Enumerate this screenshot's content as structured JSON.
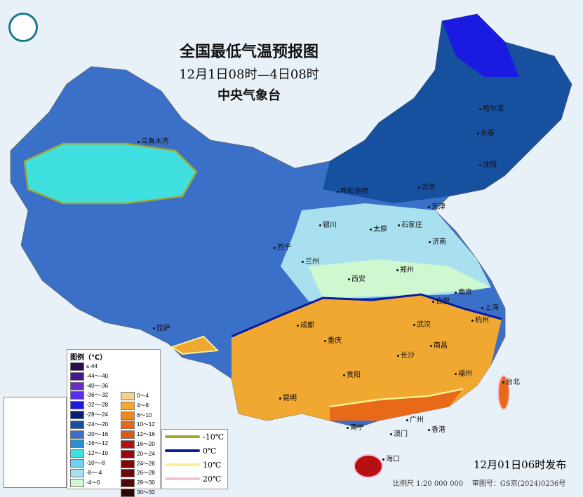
{
  "title": "全国最低气温预报图",
  "subtitle": "12月1日08时—4日08时",
  "issuer": "中央气象台",
  "issue_time": "12月01日06时发布",
  "scale": "比例尺 1:20 000 000",
  "map_number": "审图号：GS京(2024)0236号",
  "legend": {
    "heading": "图例（℃）",
    "cold": [
      {
        "label": "≤-44",
        "color": "#2a0a50"
      },
      {
        "label": "-44～-40",
        "color": "#4a1590"
      },
      {
        "label": "-40～-36",
        "color": "#6a2ec0"
      },
      {
        "label": "-36～-32",
        "color": "#5a2ef0"
      },
      {
        "label": "-32～-28",
        "color": "#1a1ae0"
      },
      {
        "label": "-28～-24",
        "color": "#0a2070"
      },
      {
        "label": "-24～-20",
        "color": "#1850a0"
      },
      {
        "label": "-20～-16",
        "color": "#3a70c8"
      },
      {
        "label": "-16～-12",
        "color": "#2a90d0"
      },
      {
        "label": "-12～-10",
        "color": "#40e0e0"
      },
      {
        "label": "-10～-8",
        "color": "#70d0f0"
      },
      {
        "label": "-8～-4",
        "color": "#a8e0f0"
      },
      {
        "label": "-4～0",
        "color": "#d0f8d0"
      }
    ],
    "warm": [
      {
        "label": "0～4",
        "color": "#f8d090"
      },
      {
        "label": "4～8",
        "color": "#f0a830"
      },
      {
        "label": "8～10",
        "color": "#f08820"
      },
      {
        "label": "10～12",
        "color": "#e86a18"
      },
      {
        "label": "12～16",
        "color": "#d85a18"
      },
      {
        "label": "16～20",
        "color": "#b81010"
      },
      {
        "label": "20～24",
        "color": "#980808"
      },
      {
        "label": "24～26",
        "color": "#800808"
      },
      {
        "label": "26～28",
        "color": "#680808"
      },
      {
        "label": "28～30",
        "color": "#500808"
      },
      {
        "label": "30～32",
        "color": "#300505"
      }
    ]
  },
  "contours": [
    {
      "label": "-10℃",
      "color": "#a0a830"
    },
    {
      "label": "0℃",
      "color": "#0a1aa0"
    },
    {
      "label": "10℃",
      "color": "#f8f090"
    },
    {
      "label": "20℃",
      "color": "#f8c0d8"
    }
  ],
  "cities": [
    "哈尔滨",
    "长春",
    "沈阳",
    "北京",
    "天津",
    "呼和浩特",
    "石家庄",
    "太原",
    "济南",
    "银川",
    "西宁",
    "兰州",
    "郑州",
    "西安",
    "合肥",
    "南京",
    "上海",
    "杭州",
    "武汉",
    "成都",
    "重庆",
    "南昌",
    "长沙",
    "福州",
    "台北",
    "贵阳",
    "昆明",
    "南宁",
    "广州",
    "澳门",
    "香港",
    "海口",
    "拉萨",
    "乌鲁木齐"
  ]
}
